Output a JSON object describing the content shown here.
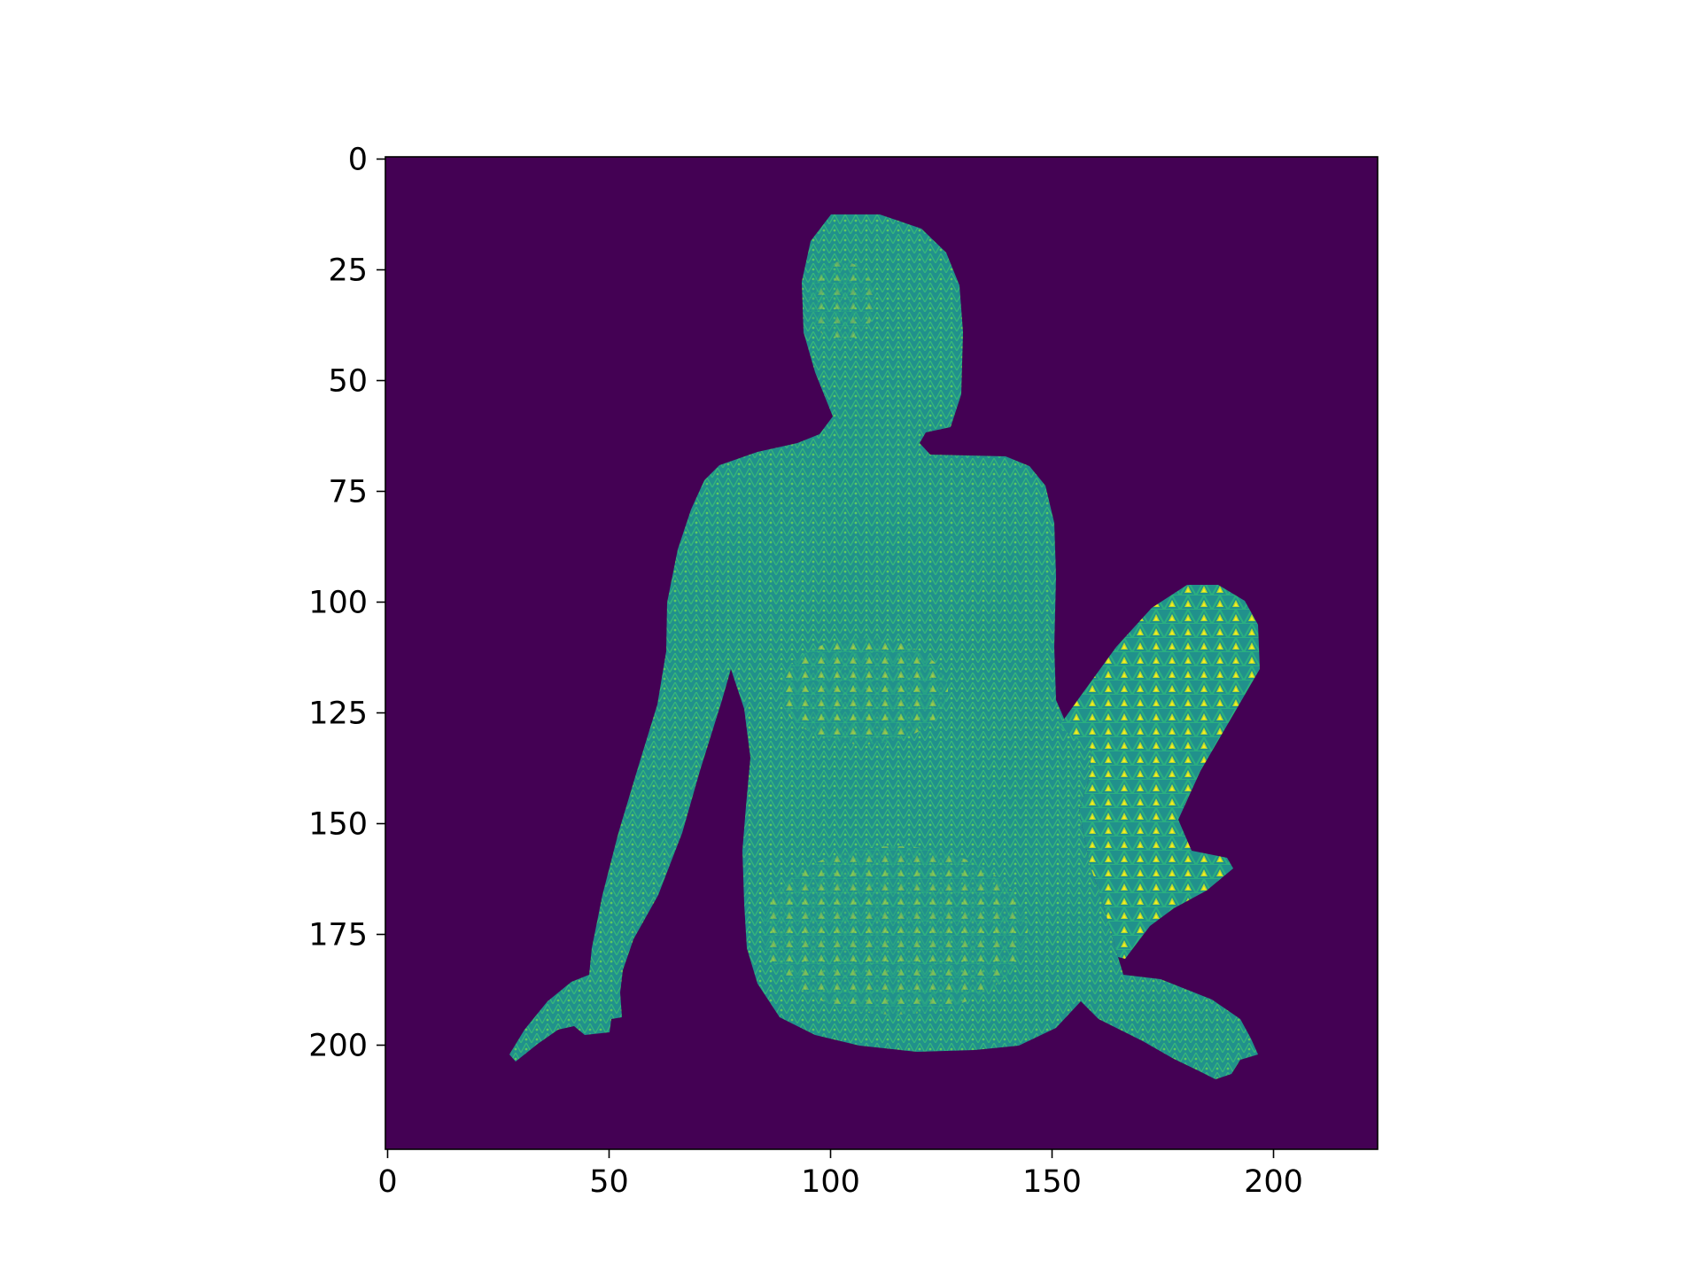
{
  "chart_data": {
    "type": "heatmap",
    "title": "",
    "xlabel": "",
    "ylabel": "",
    "colormap": "viridis",
    "image_shape": [
      224,
      224
    ],
    "xlim": [
      -0.5,
      223.5
    ],
    "ylim": [
      223.5,
      -0.5
    ],
    "x_ticks": [
      0,
      50,
      100,
      150,
      200
    ],
    "y_ticks": [
      0,
      25,
      50,
      75,
      100,
      125,
      150,
      175,
      200
    ],
    "x_tick_labels": [
      "0",
      "50",
      "100",
      "150",
      "200"
    ],
    "y_tick_labels": [
      "0",
      "25",
      "50",
      "75",
      "100",
      "125",
      "150",
      "175",
      "200"
    ],
    "description_of_content": "",
    "values_summary": {
      "background": 0,
      "body_surface": 0.55,
      "mesh_highlights": 0.9
    },
    "colors": {
      "background": "#440154",
      "body_surface": "#21918c",
      "mesh_highlight_mid": "#5ec962",
      "mesh_highlight_high": "#fde725"
    }
  }
}
